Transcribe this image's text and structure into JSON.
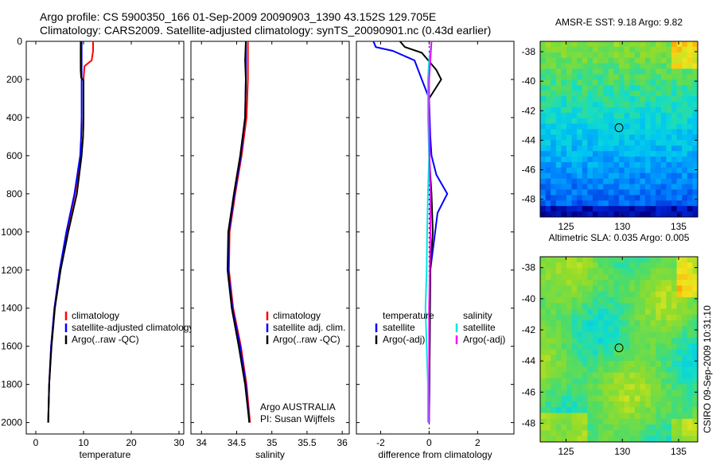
{
  "header": {
    "line1": "Argo profile: CS 5900350_166 01-Sep-2009 20090903_1390 43.152S 129.705E",
    "line2": "Climatology: CARS2009. Satellite-adjusted climatology: synTS_20090901.nc (0.43d earlier)"
  },
  "side_text": "CSIRO 09-Sep-2009 10:31:10",
  "colors": {
    "climatology": "#ff0000",
    "satellite": "#0000ff",
    "argo": "#000000",
    "satellite_s": "#00e6e6",
    "argo_s": "#ff00ff"
  },
  "chart_data": [
    {
      "id": "temperature",
      "type": "line",
      "xlabel": "temperature",
      "xlim": [
        -2,
        31
      ],
      "xticks": [
        "0",
        "10",
        "20",
        "30"
      ],
      "ylim": [
        0,
        2060
      ],
      "yticks": [
        "0",
        "200",
        "400",
        "600",
        "800",
        "1000",
        "1200",
        "1400",
        "1600",
        "1800",
        "2000"
      ],
      "legend": {
        "entries": [
          "climatology",
          "satellite-adjusted climatology",
          "Argo(..raw -QC)"
        ]
      },
      "series": [
        {
          "name": "climatology",
          "color": "climatology",
          "points": [
            [
              12,
              0
            ],
            [
              12,
              50
            ],
            [
              11.7,
              100
            ],
            [
              10.2,
              130
            ],
            [
              10,
              200
            ],
            [
              10,
              300
            ],
            [
              10,
              400
            ],
            [
              9.9,
              500
            ],
            [
              9.5,
              600
            ],
            [
              8.2,
              800
            ],
            [
              6.5,
              1000
            ],
            [
              5,
              1200
            ],
            [
              3.9,
              1400
            ],
            [
              3.2,
              1600
            ],
            [
              2.8,
              1800
            ],
            [
              2.6,
              2000
            ]
          ]
        },
        {
          "name": "satellite-adjusted climatology",
          "color": "satellite",
          "points": [
            [
              9.6,
              0
            ],
            [
              9.6,
              100
            ],
            [
              9.6,
              200
            ],
            [
              9.6,
              300
            ],
            [
              9.6,
              400
            ],
            [
              9.5,
              500
            ],
            [
              9.3,
              600
            ],
            [
              8.1,
              800
            ],
            [
              6.4,
              1000
            ],
            [
              5,
              1200
            ],
            [
              3.9,
              1400
            ],
            [
              3.2,
              1600
            ],
            [
              2.8,
              1800
            ],
            [
              2.6,
              2000
            ]
          ]
        },
        {
          "name": "Argo(..raw -QC)",
          "color": "argo",
          "points": [
            [
              9.4,
              0
            ],
            [
              9.4,
              150
            ],
            [
              9.5,
              190
            ],
            [
              10,
              205
            ],
            [
              10,
              400
            ],
            [
              9.9,
              500
            ],
            [
              9.6,
              600
            ],
            [
              8.6,
              800
            ],
            [
              6.8,
              1000
            ],
            [
              5.2,
              1200
            ],
            [
              4,
              1400
            ],
            [
              3.3,
              1600
            ],
            [
              2.8,
              1800
            ],
            [
              2.6,
              2000
            ]
          ]
        }
      ]
    },
    {
      "id": "salinity",
      "type": "line",
      "xlabel": "salinity",
      "xlim": [
        33.85,
        36.1
      ],
      "xticks": [
        "34",
        "34.5",
        "35",
        "35.5",
        "36"
      ],
      "ylim": [
        0,
        2060
      ],
      "legend": {
        "entries": [
          "climatology",
          "satellite adj. clim.",
          "Argo(..raw -QC)"
        ]
      },
      "annotation": [
        "Argo AUSTRALIA",
        "PI: Susan Wijffels"
      ],
      "series": [
        {
          "name": "climatology",
          "color": "climatology",
          "points": [
            [
              34.66,
              0
            ],
            [
              34.66,
              100
            ],
            [
              34.66,
              200
            ],
            [
              34.64,
              400
            ],
            [
              34.57,
              600
            ],
            [
              34.48,
              800
            ],
            [
              34.4,
              1000
            ],
            [
              34.39,
              1200
            ],
            [
              34.45,
              1400
            ],
            [
              34.56,
              1600
            ],
            [
              34.64,
              1800
            ],
            [
              34.69,
              2000
            ]
          ]
        },
        {
          "name": "satellite adj. clim.",
          "color": "satellite",
          "points": [
            [
              34.63,
              0
            ],
            [
              34.63,
              100
            ],
            [
              34.63,
              200
            ],
            [
              34.62,
              400
            ],
            [
              34.56,
              600
            ],
            [
              34.47,
              800
            ],
            [
              34.39,
              1000
            ],
            [
              34.38,
              1200
            ],
            [
              34.44,
              1400
            ],
            [
              34.55,
              1600
            ],
            [
              34.63,
              1800
            ],
            [
              34.68,
              2000
            ]
          ]
        },
        {
          "name": "Argo(..raw -QC)",
          "color": "argo",
          "points": [
            [
              34.63,
              0
            ],
            [
              34.62,
              100
            ],
            [
              34.63,
              200
            ],
            [
              34.62,
              400
            ],
            [
              34.55,
              600
            ],
            [
              34.46,
              800
            ],
            [
              34.38,
              1000
            ],
            [
              34.37,
              1200
            ],
            [
              34.43,
              1400
            ],
            [
              34.53,
              1600
            ],
            [
              34.62,
              1800
            ],
            [
              34.68,
              2000
            ]
          ]
        }
      ]
    },
    {
      "id": "difference",
      "type": "line",
      "xlabel": "difference from climatology",
      "xlim": [
        -3,
        3.5
      ],
      "xticks": [
        "-2",
        "0",
        "2"
      ],
      "ylim": [
        0,
        2060
      ],
      "legend": {
        "left_header": "temperature",
        "right_header": "salinity",
        "entries": [
          "satellite",
          "Argo(-adj)",
          "satellite",
          "Argo(-adj)"
        ]
      },
      "series": [
        {
          "name": "temperature satellite",
          "color": "satellite",
          "points": [
            [
              -2.3,
              0
            ],
            [
              -2.2,
              30
            ],
            [
              -1.5,
              50
            ],
            [
              -0.6,
              100
            ],
            [
              -0.3,
              200
            ],
            [
              0,
              300
            ],
            [
              0.05,
              500
            ],
            [
              0.1,
              600
            ],
            [
              0.3,
              700
            ],
            [
              0.75,
              800
            ],
            [
              0.35,
              900
            ],
            [
              0.25,
              1000
            ],
            [
              0.05,
              1200
            ],
            [
              0,
              2000
            ]
          ]
        },
        {
          "name": "temperature Argo(-adj)",
          "color": "argo",
          "points": [
            [
              -1.2,
              0
            ],
            [
              -1,
              30
            ],
            [
              -0.3,
              60
            ],
            [
              0.3,
              150
            ],
            [
              0.5,
              200
            ],
            [
              0,
              300
            ],
            [
              0,
              600
            ],
            [
              0.1,
              800
            ],
            [
              0.15,
              1000
            ],
            [
              0.05,
              1200
            ],
            [
              0,
              2000
            ]
          ]
        },
        {
          "name": "salinity satellite",
          "color": "satellite_s",
          "points": [
            [
              0.1,
              0
            ],
            [
              0.05,
              50
            ],
            [
              0,
              100
            ],
            [
              -0.05,
              200
            ],
            [
              -0.05,
              400
            ],
            [
              0,
              600
            ],
            [
              -0.05,
              800
            ],
            [
              -0.08,
              1000
            ],
            [
              -0.1,
              1200
            ],
            [
              -0.15,
              1400
            ],
            [
              -0.1,
              1600
            ],
            [
              -0.05,
              1800
            ],
            [
              -0.05,
              2000
            ]
          ]
        },
        {
          "name": "salinity Argo(-adj)",
          "color": "argo_s",
          "points": [
            [
              0.1,
              0
            ],
            [
              0.05,
              100
            ],
            [
              0,
              200
            ],
            [
              0,
              400
            ],
            [
              0.02,
              600
            ],
            [
              0.05,
              800
            ],
            [
              0.05,
              1000
            ],
            [
              0.03,
              1200
            ],
            [
              0,
              1400
            ],
            [
              0,
              1600
            ],
            [
              0,
              1800
            ],
            [
              0,
              2000
            ]
          ]
        }
      ]
    },
    {
      "id": "sst-map",
      "type": "heatmap",
      "title": "AMSR-E SST: 9.18 Argo: 9.82",
      "xlim": [
        122.7,
        136.7
      ],
      "ylim": [
        -49.2,
        -37.3
      ],
      "xticks": [
        "125",
        "130",
        "135"
      ],
      "yticks": [
        "-38",
        "-40",
        "-42",
        "-44",
        "-46",
        "-48"
      ],
      "marker": {
        "lon": 129.705,
        "lat": -43.152
      }
    },
    {
      "id": "sla-map",
      "type": "heatmap",
      "title": "Altimetric SLA: 0.035 Argo: 0.005",
      "xlim": [
        122.7,
        136.7
      ],
      "ylim": [
        -49.2,
        -37.3
      ],
      "xticks": [
        "125",
        "130",
        "135"
      ],
      "yticks": [
        "-38",
        "-40",
        "-42",
        "-44",
        "-46",
        "-48"
      ],
      "marker": {
        "lon": 129.705,
        "lat": -43.152
      }
    }
  ]
}
